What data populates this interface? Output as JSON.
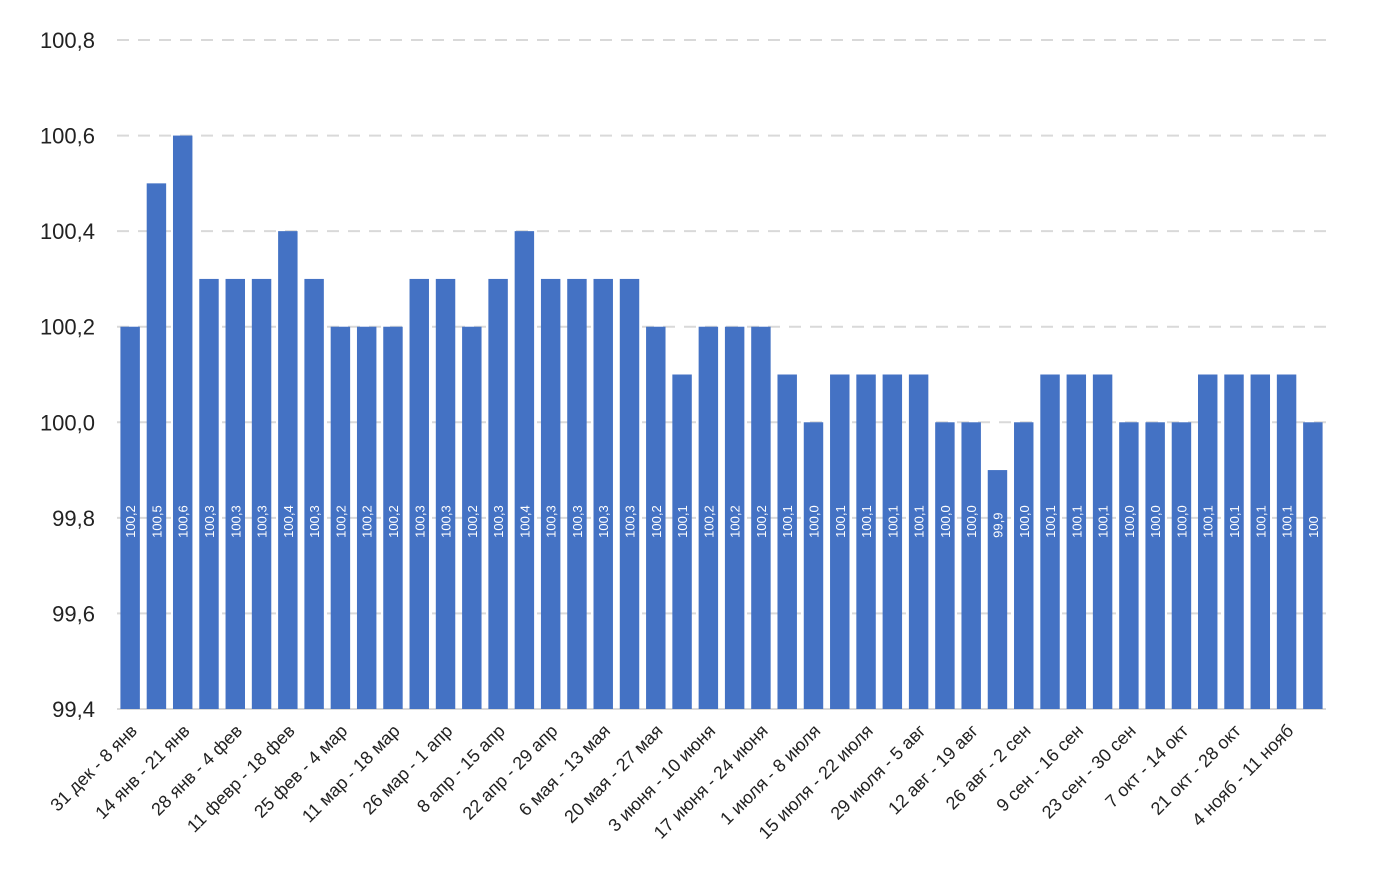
{
  "chart_data": {
    "type": "bar",
    "title": "",
    "xlabel": "",
    "ylabel": "",
    "ylim": [
      99.4,
      100.8
    ],
    "yticks": [
      "99,4",
      "99,6",
      "99,8",
      "100,0",
      "100,2",
      "100,4",
      "100,6",
      "100,8"
    ],
    "grid": true,
    "legend": "none",
    "color": "#4472c4",
    "categories": [
      "31 дек - 8 янв",
      "",
      "14 янв - 21 янв",
      "",
      "28 янв - 4 фев",
      "",
      "11 февр - 18 фев",
      "",
      "25 фев - 4 мар",
      "",
      "11 мар - 18 мар",
      "",
      "26 мар - 1 апр",
      "",
      "8 апр - 15 апр",
      "",
      "22 апр - 29 апр",
      "",
      "6 мая - 13 мая",
      "",
      "20 мая - 27 мая",
      "",
      "3 июня - 10 июня",
      "",
      "17 июня - 24 июня",
      "",
      "1 июля - 8 июля",
      "",
      "15 июля - 22 июля",
      "",
      "29 июля - 5 авг",
      "",
      "12 авг - 19 авг",
      "",
      "26 авг - 2 сен",
      "",
      "9 сен - 16 сен",
      "",
      "23 сен - 30 сен",
      "",
      "7 окт - 14 окт",
      "",
      "21 окт - 28 окт",
      "",
      "4 нояб - 11 нояб",
      ""
    ],
    "values": [
      100.2,
      100.5,
      100.6,
      100.3,
      100.3,
      100.3,
      100.4,
      100.3,
      100.2,
      100.2,
      100.2,
      100.3,
      100.3,
      100.2,
      100.3,
      100.4,
      100.3,
      100.3,
      100.3,
      100.3,
      100.2,
      100.1,
      100.2,
      100.2,
      100.2,
      100.1,
      100.0,
      100.1,
      100.1,
      100.1,
      100.1,
      100.0,
      100.0,
      99.9,
      100.0,
      100.1,
      100.1,
      100.1,
      100.0,
      100.0,
      100.0,
      100.1,
      100.1,
      100.1,
      100.1,
      100.0
    ],
    "data_labels": [
      "100,2",
      "100,5",
      "100,6",
      "100,3",
      "100,3",
      "100,3",
      "100,4",
      "100,3",
      "100,2",
      "100,2",
      "100,2",
      "100,3",
      "100,3",
      "100,2",
      "100,3",
      "100,4",
      "100,3",
      "100,3",
      "100,3",
      "100,3",
      "100,2",
      "100,1",
      "100,2",
      "100,2",
      "100,2",
      "100,1",
      "100,0",
      "100,1",
      "100,1",
      "100,1",
      "100,1",
      "100,0",
      "100,0",
      "99,9",
      "100,0",
      "100,1",
      "100,1",
      "100,1",
      "100,0",
      "100,0",
      "100,0",
      "100,1",
      "100,1",
      "100,1",
      "100,1",
      "100"
    ]
  }
}
